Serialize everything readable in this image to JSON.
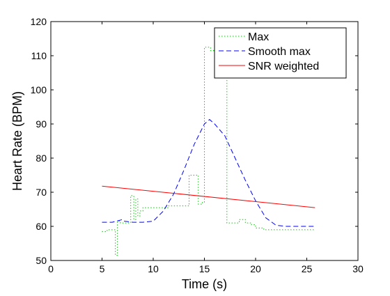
{
  "chart_data": {
    "type": "line",
    "title": "",
    "xlabel": "Time (s)",
    "ylabel": "Heart Rate (BPM)",
    "xlim": [
      0,
      30
    ],
    "ylim": [
      50,
      120
    ],
    "xticks": [
      0,
      5,
      10,
      15,
      20,
      25,
      30
    ],
    "yticks": [
      50,
      60,
      70,
      80,
      90,
      100,
      110,
      120
    ],
    "grid": false,
    "legend_position": "top-right",
    "series": [
      {
        "name": "Max",
        "color": "#00cc00",
        "style": "dotted",
        "x": [
          5.0,
          5.5,
          6.0,
          6.3,
          6.5,
          6.8,
          7.6,
          7.8,
          8.1,
          8.3,
          8.5,
          8.7,
          9.0,
          10.0,
          11.5,
          13.0,
          13.5,
          14.0,
          14.4,
          14.8,
          15.0,
          15.6,
          16.0,
          16.4,
          17.2,
          17.6,
          18.4,
          19.0,
          19.6,
          20.0,
          20.8,
          24.8,
          25.8
        ],
        "y": [
          58.5,
          59.0,
          59.0,
          51.5,
          61.5,
          61.0,
          61.2,
          69.0,
          62.0,
          68.0,
          63.0,
          64.5,
          65.5,
          65.5,
          66.0,
          66.0,
          75.0,
          75.0,
          66.5,
          67.0,
          112.5,
          111.5,
          107.0,
          108.0,
          61.0,
          61.0,
          62.0,
          61.0,
          60.5,
          59.5,
          59.0,
          59.0,
          59.0
        ]
      },
      {
        "name": "Smooth max",
        "color": "#0000ff",
        "style": "dashed",
        "x": [
          5.0,
          6.0,
          7.0,
          7.2,
          8.0,
          9.0,
          10.0,
          11.0,
          12.0,
          13.0,
          14.0,
          15.0,
          15.5,
          16.0,
          17.0,
          18.0,
          19.0,
          20.0,
          21.0,
          22.0,
          23.0,
          24.0,
          25.0,
          25.8
        ],
        "y": [
          61.2,
          61.2,
          62.0,
          61.5,
          61.2,
          61.2,
          61.5,
          64.5,
          69.5,
          76.5,
          84.0,
          90.0,
          91.3,
          90.0,
          86.5,
          80.0,
          73.5,
          67.5,
          62.5,
          60.3,
          60.0,
          60.0,
          60.0,
          60.0
        ]
      },
      {
        "name": "SNR weighted",
        "color": "#ff0000",
        "style": "solid",
        "x": [
          5.0,
          25.8
        ],
        "y": [
          71.8,
          65.5
        ]
      }
    ]
  }
}
